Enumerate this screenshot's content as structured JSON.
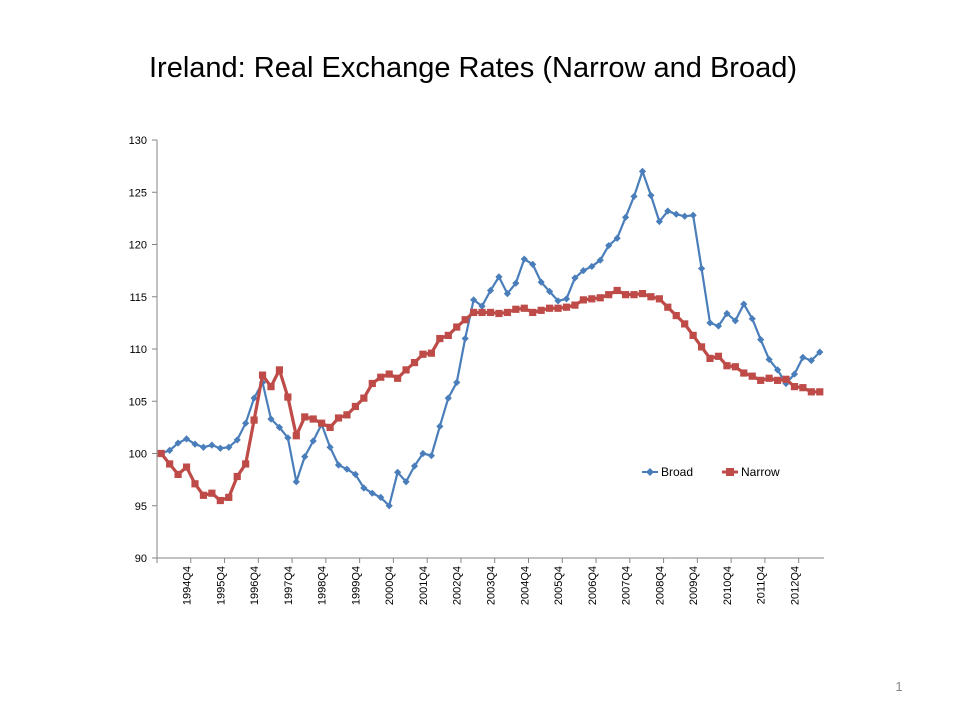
{
  "slide": {
    "page_number": "1"
  },
  "chart_data": {
    "type": "line",
    "title": "Ireland: Real Exchange Rates (Narrow and Broad)",
    "xlabel": "",
    "ylabel": "",
    "ylim": [
      90,
      130
    ],
    "yticks": [
      90,
      95,
      100,
      105,
      110,
      115,
      120,
      125,
      130
    ],
    "grid": false,
    "legend_position": "inside-right",
    "x_tick_labels": [
      "1994Q4",
      "1995Q4",
      "1996Q4",
      "1997Q4",
      "1998Q4",
      "1999Q4",
      "2000Q4",
      "2001Q4",
      "2002Q4",
      "2003Q4",
      "2004Q4",
      "2005Q4",
      "2006Q4",
      "2007Q4",
      "2008Q4",
      "2009Q4",
      "2010Q4",
      "2011Q4",
      "2012Q4"
    ],
    "x_start": "1994Q1",
    "series": [
      {
        "name": "Broad",
        "color": "#4a7ebb",
        "marker": "diamond",
        "values": [
          100.0,
          100.3,
          101.0,
          101.4,
          100.9,
          100.6,
          100.8,
          100.5,
          100.6,
          101.3,
          102.9,
          105.3,
          106.8,
          103.3,
          102.5,
          101.5,
          97.3,
          99.7,
          101.2,
          102.8,
          100.6,
          98.9,
          98.5,
          98.0,
          96.7,
          96.2,
          95.8,
          95.0,
          98.2,
          97.3,
          98.8,
          100.0,
          99.8,
          102.6,
          105.3,
          106.8,
          111.0,
          114.7,
          114.1,
          115.6,
          116.9,
          115.3,
          116.3,
          118.6,
          118.1,
          116.4,
          115.5,
          114.6,
          114.8,
          116.8,
          117.5,
          117.9,
          118.5,
          119.9,
          120.6,
          122.6,
          124.6,
          127.0,
          124.7,
          122.2,
          123.2,
          122.9,
          122.7,
          122.8,
          117.7,
          112.5,
          112.2,
          113.4,
          112.7,
          114.3,
          112.9,
          110.9,
          109.0,
          108.0,
          106.7,
          107.6,
          109.2,
          108.9,
          109.7
        ]
      },
      {
        "name": "Narrow",
        "color": "#be4b48",
        "marker": "square",
        "values": [
          100.0,
          99.0,
          98.0,
          98.7,
          97.1,
          96.0,
          96.2,
          95.5,
          95.8,
          97.8,
          99.0,
          103.2,
          107.5,
          106.4,
          108.0,
          105.4,
          101.7,
          103.5,
          103.3,
          102.9,
          102.5,
          103.4,
          103.7,
          104.5,
          105.3,
          106.7,
          107.3,
          107.6,
          107.2,
          108.0,
          108.7,
          109.5,
          109.6,
          111.0,
          111.3,
          112.1,
          112.8,
          113.5,
          113.5,
          113.5,
          113.4,
          113.5,
          113.8,
          113.9,
          113.5,
          113.7,
          113.9,
          113.9,
          114.0,
          114.2,
          114.7,
          114.8,
          114.9,
          115.2,
          115.6,
          115.2,
          115.2,
          115.3,
          115.0,
          114.8,
          114.0,
          113.2,
          112.4,
          111.3,
          110.2,
          109.1,
          109.3,
          108.4,
          108.3,
          107.7,
          107.4,
          107.0,
          107.2,
          107.0,
          107.1,
          106.4,
          106.3,
          105.9,
          105.9
        ]
      }
    ]
  }
}
